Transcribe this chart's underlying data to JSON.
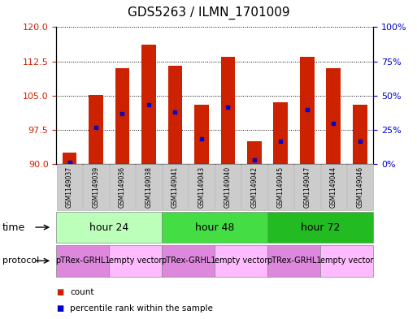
{
  "title": "GDS5263 / ILMN_1701009",
  "samples": [
    "GSM1149037",
    "GSM1149039",
    "GSM1149036",
    "GSM1149038",
    "GSM1149041",
    "GSM1149043",
    "GSM1149040",
    "GSM1149042",
    "GSM1149045",
    "GSM1149047",
    "GSM1149044",
    "GSM1149046"
  ],
  "bar_values": [
    92.5,
    105.2,
    111.0,
    116.2,
    111.5,
    103.0,
    113.5,
    95.0,
    103.5,
    113.5,
    111.0,
    103.0
  ],
  "blue_dot_values": [
    90.5,
    98.0,
    101.0,
    103.0,
    101.5,
    95.5,
    102.5,
    91.0,
    95.0,
    102.0,
    99.0,
    95.0
  ],
  "ylim_left": [
    90,
    120
  ],
  "ylim_right": [
    0,
    100
  ],
  "yticks_left": [
    90,
    97.5,
    105,
    112.5,
    120
  ],
  "yticks_right": [
    0,
    25,
    50,
    75,
    100
  ],
  "bar_color": "#cc2200",
  "blue_color": "#0000cc",
  "bar_bottom": 90,
  "bar_width": 0.55,
  "time_groups": [
    {
      "label": "hour 24",
      "start": 0,
      "end": 4,
      "color": "#bbffbb"
    },
    {
      "label": "hour 48",
      "start": 4,
      "end": 8,
      "color": "#44dd44"
    },
    {
      "label": "hour 72",
      "start": 8,
      "end": 12,
      "color": "#22bb22"
    }
  ],
  "protocol_groups": [
    {
      "label": "pTRex-GRHL1",
      "start": 0,
      "end": 2,
      "color": "#dd88dd"
    },
    {
      "label": "empty vector",
      "start": 2,
      "end": 4,
      "color": "#ffbbff"
    },
    {
      "label": "pTRex-GRHL1",
      "start": 4,
      "end": 6,
      "color": "#dd88dd"
    },
    {
      "label": "empty vector",
      "start": 6,
      "end": 8,
      "color": "#ffbbff"
    },
    {
      "label": "pTRex-GRHL1",
      "start": 8,
      "end": 10,
      "color": "#dd88dd"
    },
    {
      "label": "empty vector",
      "start": 10,
      "end": 12,
      "color": "#ffbbff"
    }
  ],
  "bg_color": "#ffffff",
  "tick_label_color_left": "#cc2200",
  "tick_label_color_right": "#0000cc",
  "sample_bg_color": "#cccccc",
  "sample_edge_color": "#aaaaaa",
  "legend_count_color": "#cc2200",
  "legend_percentile_color": "#0000cc",
  "title_fontsize": 11,
  "tick_fontsize": 8,
  "sample_fontsize": 5.5,
  "row_label_fontsize": 9,
  "time_label_fontsize": 9,
  "proto_label_fontsize": 7
}
